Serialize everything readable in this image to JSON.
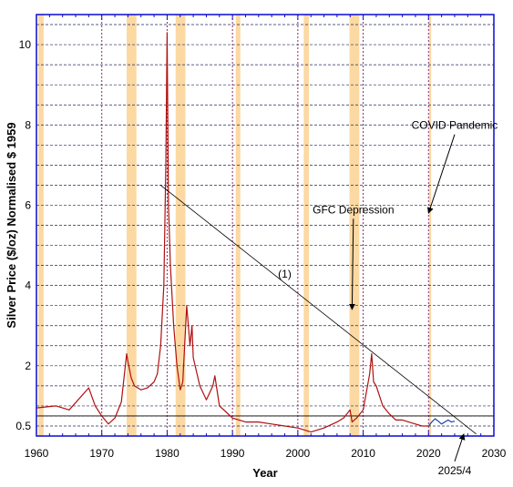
{
  "chart_data": {
    "type": "line",
    "xlabel": "Year",
    "ylabel": "Silver Price ($/oz) Normalised $ 1959",
    "xlim": [
      1960,
      2030
    ],
    "ylim": [
      0.25,
      10.75
    ],
    "x_ticks": [
      1960,
      1970,
      1980,
      1990,
      2000,
      2010,
      2020,
      2030
    ],
    "y_ticks": [
      0.5,
      2,
      4,
      6,
      8,
      10
    ],
    "y_gridlines": [
      0.5,
      0.75,
      1,
      1.5,
      2,
      2.5,
      3,
      3.5,
      4,
      4.5,
      5,
      5.5,
      6,
      6.5,
      7,
      7.5,
      8,
      8.5,
      9,
      9.5,
      10,
      10.5
    ],
    "grid": true,
    "recession_bands": [
      [
        1960.3,
        1961.1
      ],
      [
        1973.8,
        1975.3
      ],
      [
        1981.3,
        1982.8
      ],
      [
        1990.5,
        1991.2
      ],
      [
        2000.9,
        2001.7
      ],
      [
        2007.9,
        2009.4
      ],
      [
        2020.1,
        2020.4
      ]
    ],
    "event_lines": [
      1970,
      1980,
      1990,
      2000,
      2010,
      2020
    ],
    "series": [
      {
        "color": "#b01010",
        "x": [
          1960,
          1963,
          1965,
          1968,
          1969,
          1970,
          1971,
          1972,
          1973,
          1973.8,
          1974,
          1974.5,
          1975,
          1976,
          1977,
          1978,
          1978.5,
          1979,
          1979.5,
          1979.8,
          1980,
          1980.2,
          1980.5,
          1981,
          1981.5,
          1982,
          1982.4,
          1983,
          1983.5,
          1983.8,
          1984,
          1985,
          1986,
          1987,
          1987.3,
          1988,
          1989,
          1990,
          1992,
          1994,
          1996,
          1998,
          2000,
          2002,
          2004,
          2006,
          2007,
          2008,
          2008.3,
          2009,
          2010,
          2011,
          2011.3,
          2011.6,
          2012,
          2013,
          2014,
          2015,
          2016,
          2018,
          2019,
          2020
        ],
        "y": [
          0.95,
          1.0,
          0.9,
          1.45,
          1.0,
          0.75,
          0.55,
          0.7,
          1.1,
          2.3,
          2.1,
          1.7,
          1.5,
          1.4,
          1.45,
          1.6,
          1.8,
          2.5,
          4.0,
          7.0,
          10.3,
          6.0,
          4.5,
          3.0,
          2.0,
          1.4,
          1.6,
          3.5,
          2.5,
          3.0,
          2.2,
          1.5,
          1.15,
          1.5,
          1.75,
          1.0,
          0.85,
          0.7,
          0.6,
          0.6,
          0.55,
          0.5,
          0.45,
          0.35,
          0.45,
          0.6,
          0.7,
          0.9,
          0.6,
          0.7,
          0.9,
          1.8,
          2.3,
          1.6,
          1.5,
          1.0,
          0.8,
          0.65,
          0.65,
          0.55,
          0.5,
          0.5
        ]
      },
      {
        "color": "#1a3fb0",
        "x": [
          2020,
          2020.5,
          2021,
          2021.5,
          2022,
          2022.5,
          2023,
          2023.5,
          2024
        ],
        "y": [
          0.5,
          0.6,
          0.68,
          0.62,
          0.55,
          0.6,
          0.65,
          0.6,
          0.62
        ]
      }
    ],
    "trend_line": {
      "x": [
        1979,
        2027.3
      ],
      "y": [
        6.5,
        0.3
      ]
    },
    "reference_line_y": 0.75,
    "annotations": [
      {
        "text": "COVID Pandemic",
        "x": 2024,
        "y": 7.9,
        "arrow_to": [
          2020,
          5.8
        ]
      },
      {
        "text": "GFC Depression",
        "x": 2008.5,
        "y": 5.8,
        "arrow_to": [
          2008.3,
          3.4
        ]
      },
      {
        "text": "(1)",
        "x": 1998,
        "y": 4.2
      },
      {
        "text": "2025/4",
        "x": 2024,
        "y": -0.7,
        "arrow_to": [
          2025.4,
          0.3
        ]
      }
    ]
  }
}
